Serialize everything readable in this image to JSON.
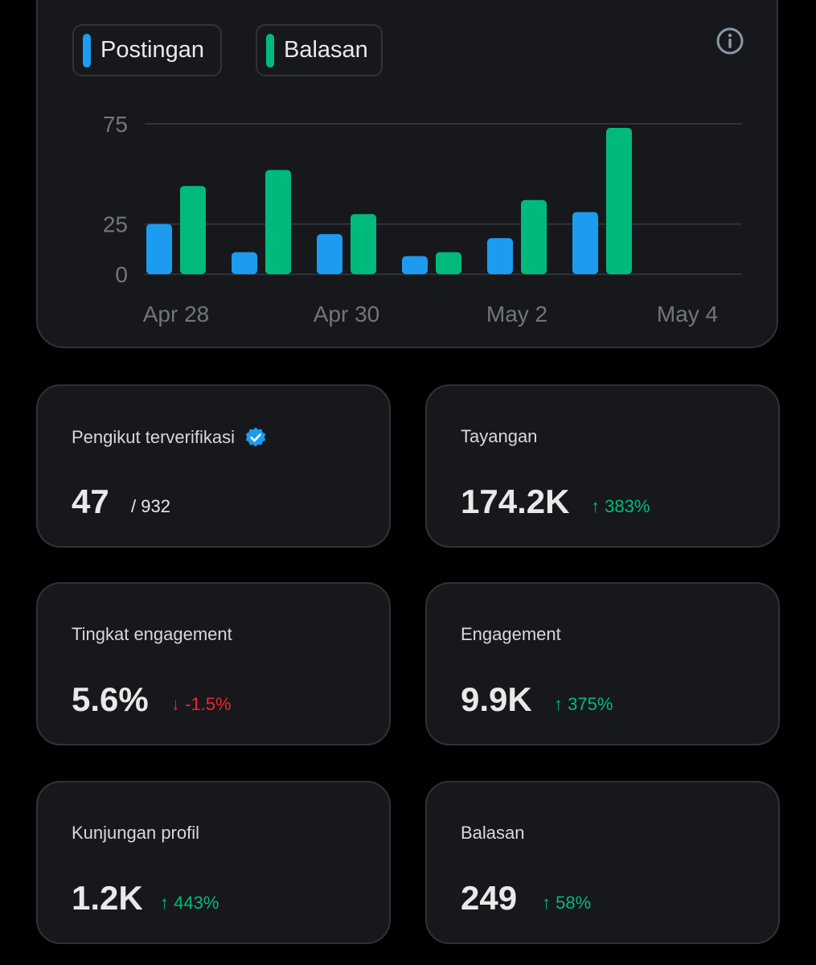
{
  "legend": [
    {
      "label": "Postingan",
      "color": "#1d9bf0"
    },
    {
      "label": "Balasan",
      "color": "#00ba7c"
    }
  ],
  "info_icon": "info-circle-icon",
  "chart_data": {
    "type": "bar",
    "categories": [
      "Apr 28",
      "Apr 29",
      "Apr 30",
      "May 1",
      "May 2",
      "May 3",
      "May 4"
    ],
    "x_tick_labels": [
      "Apr 28",
      "Apr 30",
      "May 2",
      "May 4"
    ],
    "y_ticks": [
      0,
      25,
      75
    ],
    "ylim": [
      0,
      75
    ],
    "series": [
      {
        "name": "Postingan",
        "color": "#1d9bf0",
        "values": [
          25,
          11,
          20,
          9,
          18,
          31,
          0
        ]
      },
      {
        "name": "Balasan",
        "color": "#00ba7c",
        "values": [
          44,
          52,
          30,
          11,
          37,
          73,
          0
        ]
      }
    ],
    "grid": true,
    "legend_placement": "top-left"
  },
  "cards": {
    "verified": {
      "title": "Pengikut terverifikasi",
      "value": "47",
      "sub": "/ 932",
      "badge_icon": "verified-badge-icon"
    },
    "views": {
      "title": "Tayangan",
      "value": "174.2K",
      "change": "383%",
      "direction": "up"
    },
    "engagement_rate": {
      "title": "Tingkat engagement",
      "value": "5.6%",
      "change": "-1.5%",
      "direction": "down"
    },
    "engagement": {
      "title": "Engagement",
      "value": "9.9K",
      "change": "375%",
      "direction": "up"
    },
    "profile_visits": {
      "title": "Kunjungan profil",
      "value": "1.2K",
      "change": "443%",
      "direction": "up"
    },
    "replies": {
      "title": "Balasan",
      "value": "249",
      "change": "58%",
      "direction": "up"
    }
  },
  "arrows": {
    "up": "↑",
    "down": "↓"
  }
}
